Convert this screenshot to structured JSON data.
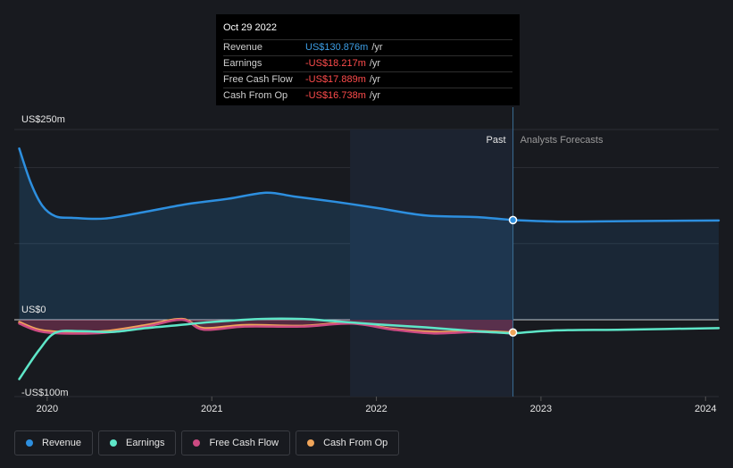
{
  "tooltip": {
    "date": "Oct 29 2022",
    "rows": [
      {
        "label": "Revenue",
        "value": "US$130.876m",
        "unit": "/yr"
      },
      {
        "label": "Earnings",
        "value": "-US$18.217m",
        "unit": "/yr"
      },
      {
        "label": "Free Cash Flow",
        "value": "-US$17.889m",
        "unit": "/yr"
      },
      {
        "label": "Cash From Op",
        "value": "-US$16.738m",
        "unit": "/yr"
      }
    ]
  },
  "legend": [
    {
      "label": "Revenue",
      "color": "#2d8fdf"
    },
    {
      "label": "Earnings",
      "color": "#5ee6c8"
    },
    {
      "label": "Free Cash Flow",
      "color": "#cc4a82"
    },
    {
      "label": "Cash From Op",
      "color": "#f0a55a"
    }
  ],
  "chart_data": {
    "type": "line",
    "y_tick_labels": [
      "US$250m",
      "US$0",
      "-US$100m"
    ],
    "x_tick_labels": [
      "2020",
      "2021",
      "2022",
      "2023",
      "2024"
    ],
    "region_labels": {
      "past": "Past",
      "forecast": "Analysts Forecasts"
    },
    "ylim": [
      -100,
      250
    ],
    "xlim": [
      2019.8,
      2024.08
    ],
    "divider_x": 2022.83,
    "highlight_start_x": 2021.84,
    "series": [
      {
        "name": "Revenue",
        "color": "#2d8fdf",
        "x": [
          2019.83,
          2019.9,
          2019.97,
          2020.05,
          2020.15,
          2020.35,
          2020.6,
          2020.85,
          2021.1,
          2021.33,
          2021.5,
          2021.75,
          2022.0,
          2022.3,
          2022.6,
          2022.83
        ],
        "y": [
          225,
          180,
          150,
          136,
          134,
          133,
          142,
          152,
          159,
          167,
          162,
          155,
          147,
          137,
          135,
          131
        ],
        "forecast_x": [
          2022.83,
          2023.1,
          2023.5,
          2024.08
        ],
        "forecast_y": [
          131,
          129,
          129.5,
          130.5
        ]
      },
      {
        "name": "Earnings",
        "color": "#5ee6c8",
        "x": [
          2019.83,
          2019.95,
          2020.05,
          2020.2,
          2020.4,
          2020.6,
          2020.8,
          2021.0,
          2021.3,
          2021.55,
          2021.75,
          2022.0,
          2022.3,
          2022.6,
          2022.83
        ],
        "y": [
          -78,
          -40,
          -17,
          -15,
          -16,
          -11,
          -7,
          -3,
          1,
          1,
          -2,
          -6,
          -10,
          -15,
          -18
        ],
        "forecast_x": [
          2022.83,
          2023.1,
          2023.5,
          2024.08
        ],
        "forecast_y": [
          -18,
          -14,
          -13,
          -11
        ]
      },
      {
        "name": "Free Cash Flow",
        "color": "#cc4a82",
        "x": [
          2019.83,
          2019.95,
          2020.1,
          2020.35,
          2020.6,
          2020.82,
          2020.95,
          2021.2,
          2021.55,
          2021.85,
          2022.1,
          2022.35,
          2022.6,
          2022.83
        ],
        "y": [
          -5,
          -15,
          -18,
          -17,
          -9,
          0,
          -13,
          -9,
          -9,
          -5,
          -13,
          -18,
          -16,
          -17.9
        ]
      },
      {
        "name": "Cash From Op",
        "color": "#f0a55a",
        "x": [
          2019.83,
          2019.95,
          2020.1,
          2020.35,
          2020.6,
          2020.82,
          2020.95,
          2021.2,
          2021.55,
          2021.85,
          2022.1,
          2022.35,
          2022.6,
          2022.83
        ],
        "y": [
          -3,
          -13,
          -16,
          -15,
          -7,
          1,
          -11,
          -7,
          -8,
          -4,
          -12,
          -16,
          -15,
          -16.7
        ]
      }
    ]
  }
}
